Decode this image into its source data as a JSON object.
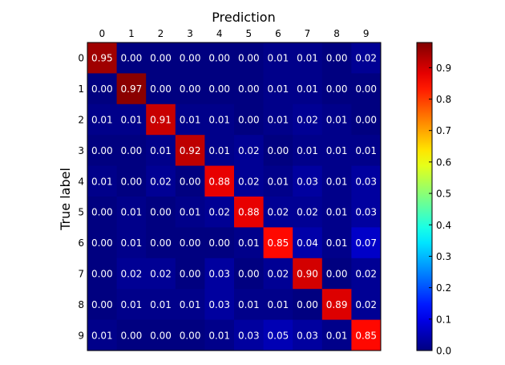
{
  "chart_data": {
    "type": "heatmap",
    "title": "",
    "xlabel": "Prediction",
    "ylabel": "True label",
    "x_categories": [
      "0",
      "1",
      "2",
      "3",
      "4",
      "5",
      "6",
      "7",
      "8",
      "9"
    ],
    "y_categories": [
      "0",
      "1",
      "2",
      "3",
      "4",
      "5",
      "6",
      "7",
      "8",
      "9"
    ],
    "values": [
      [
        0.95,
        0.0,
        0.0,
        0.0,
        0.0,
        0.0,
        0.01,
        0.01,
        0.0,
        0.02
      ],
      [
        0.0,
        0.97,
        0.0,
        0.0,
        0.0,
        0.0,
        0.01,
        0.01,
        0.0,
        0.0
      ],
      [
        0.01,
        0.01,
        0.91,
        0.01,
        0.01,
        0.0,
        0.01,
        0.02,
        0.01,
        0.0
      ],
      [
        0.0,
        0.0,
        0.01,
        0.92,
        0.01,
        0.02,
        0.0,
        0.01,
        0.01,
        0.01
      ],
      [
        0.01,
        0.0,
        0.02,
        0.0,
        0.88,
        0.02,
        0.01,
        0.03,
        0.01,
        0.03
      ],
      [
        0.0,
        0.01,
        0.0,
        0.01,
        0.02,
        0.88,
        0.02,
        0.02,
        0.01,
        0.03
      ],
      [
        0.0,
        0.01,
        0.0,
        0.0,
        0.0,
        0.01,
        0.85,
        0.04,
        0.01,
        0.07
      ],
      [
        0.0,
        0.02,
        0.02,
        0.0,
        0.03,
        0.0,
        0.02,
        0.9,
        0.0,
        0.02
      ],
      [
        0.0,
        0.01,
        0.01,
        0.01,
        0.03,
        0.01,
        0.01,
        0.0,
        0.89,
        0.02
      ],
      [
        0.01,
        0.0,
        0.0,
        0.0,
        0.01,
        0.03,
        0.05,
        0.03,
        0.01,
        0.85
      ]
    ],
    "colorbar": {
      "range": [
        0.0,
        0.98
      ],
      "ticks": [
        "0.0",
        "0.1",
        "0.2",
        "0.3",
        "0.4",
        "0.5",
        "0.6",
        "0.7",
        "0.8",
        "0.9"
      ],
      "colormap": "jet"
    },
    "grid": false,
    "colors": {
      "low": "#00007f",
      "high": "#7f0000"
    }
  }
}
